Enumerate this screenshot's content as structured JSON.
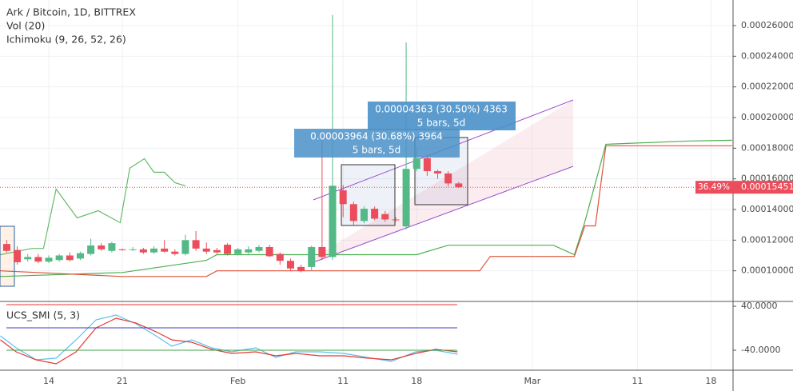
{
  "chart_data": [
    {
      "type": "candlestick",
      "title": "Ark / Bitcoin, 1D, BITTREX",
      "indicators": [
        "Vol (20)",
        "Ichimoku (9, 26, 52, 26)"
      ],
      "up_color": "#53b987",
      "down_color": "#eb4d5c",
      "xlim": [
        9.36,
        79.1
      ],
      "xticks": [
        14,
        21,
        {
          "value": 32,
          "label": "Feb"
        },
        {
          "value": 42,
          "label": "11"
        },
        {
          "value": 49,
          "label": "18"
        },
        {
          "value": 60,
          "label": "Mar"
        },
        {
          "value": 70,
          "label": "11"
        },
        {
          "value": 77,
          "label": "18"
        }
      ],
      "ylim": [
        8e-05,
        0.0002767
      ],
      "yticks": [
        {
          "value": 0.0001,
          "label": "0.00010000"
        },
        {
          "value": 0.00012,
          "label": "0.00012000"
        },
        {
          "value": 0.00014,
          "label": "0.00014000"
        },
        {
          "value": 0.00016,
          "label": "0.00016000"
        },
        {
          "value": 0.00018,
          "label": "0.00018000"
        },
        {
          "value": 0.0002,
          "label": "0.00020000"
        },
        {
          "value": 0.00022,
          "label": "0.00022000"
        },
        {
          "value": 0.00024,
          "label": "0.00024000"
        },
        {
          "value": 0.00026,
          "label": "0.00026000"
        }
      ],
      "grid": true,
      "x": [
        10,
        11,
        12,
        13,
        14,
        15,
        16,
        17,
        18,
        19,
        20,
        21,
        22,
        23,
        24,
        25,
        26,
        27,
        28,
        29,
        30,
        31,
        32,
        33,
        34,
        35,
        36,
        37,
        38,
        39,
        40,
        41,
        42,
        43,
        44,
        45,
        46,
        47,
        48,
        49,
        50,
        51,
        52,
        53
      ],
      "open": [
        0.0001175,
        0.0001136,
        0.0001075,
        0.000109,
        0.000106,
        0.000107,
        0.00011,
        0.000108,
        0.000111,
        0.0001165,
        0.000113,
        0.000114,
        0.0001135,
        0.000114,
        0.000112,
        0.0001145,
        0.0001125,
        0.000111,
        0.00012,
        0.0001145,
        0.0001135,
        0.000117,
        0.000111,
        0.000112,
        0.000113,
        0.0001155,
        0.000111,
        0.0001065,
        0.0001025,
        0.0001025,
        0.0001155,
        0.000109,
        0.0001525,
        0.0001435,
        0.0001325,
        0.0001405,
        0.000137,
        0.0001335,
        0.000129,
        0.0001665,
        0.0001735,
        0.000165,
        0.0001635,
        0.000157
      ],
      "high": [
        0.00012,
        0.000116,
        0.000111,
        0.000111,
        0.00011,
        0.000111,
        0.000112,
        0.0001125,
        0.000121,
        0.000118,
        0.000119,
        0.0001145,
        0.0001155,
        0.000115,
        0.000116,
        0.00012,
        0.000114,
        0.0001235,
        0.000126,
        0.0001185,
        0.000115,
        0.000118,
        0.000115,
        0.000116,
        0.000117,
        0.000117,
        0.000112,
        0.000108,
        0.000104,
        0.0001165,
        0.000186,
        0.000267,
        0.000156,
        0.000145,
        0.000142,
        0.000142,
        0.000139,
        0.000135,
        0.000249,
        0.00018,
        0.000176,
        0.000166,
        0.000165,
        0.000158
      ],
      "low": [
        0.000112,
        0.000104,
        0.000106,
        0.000105,
        0.000105,
        0.000106,
        0.000106,
        0.000107,
        0.00011,
        0.000113,
        0.000112,
        0.000113,
        0.000113,
        0.000111,
        0.000111,
        0.000112,
        0.00011,
        0.00011,
        0.000113,
        0.000111,
        0.000111,
        0.00011,
        0.00011,
        0.000111,
        0.000112,
        0.000109,
        0.000104,
        0.0001,
        9.9e-05,
        0.0001,
        0.000107,
        0.000107,
        0.000135,
        0.00013,
        0.000131,
        0.000133,
        0.000132,
        0.000132,
        0.000127,
        0.000165,
        0.000162,
        0.00016,
        0.000155,
        0.000154
      ],
      "close": [
        0.000113,
        0.0001056,
        0.000109,
        0.000106,
        0.0001085,
        0.00011,
        0.000107,
        0.0001115,
        0.0001165,
        0.000114,
        0.000118,
        0.0001135,
        0.000114,
        0.000112,
        0.0001145,
        0.0001125,
        0.000111,
        0.00012,
        0.0001145,
        0.0001125,
        0.000112,
        0.000111,
        0.000114,
        0.000114,
        0.0001155,
        0.0001095,
        0.0001065,
        0.0001015,
        0.0001,
        0.0001155,
        0.000109,
        0.0001555,
        0.0001435,
        0.0001325,
        0.0001405,
        0.000134,
        0.0001335,
        0.000133,
        0.0001665,
        0.0001735,
        0.000165,
        0.0001635,
        0.000157,
        0.00015451
      ],
      "lines": [
        {
          "color": "#4caf50",
          "x": [
            9.4,
            21,
            29,
            30,
            49,
            52,
            62,
            64,
            65,
            67,
            75,
            79
          ],
          "values": [
            9.63e-05,
            9.89e-05,
            0.0001068,
            0.0001105,
            0.0001105,
            0.0001167,
            0.0001167,
            0.0001105,
            0.0001319,
            0.0001826,
            0.0001847,
            0.0001852
          ]
        },
        {
          "color": "#e0523a",
          "x": [
            9.4,
            21,
            29,
            30,
            55,
            56,
            64,
            65,
            66,
            67,
            79
          ],
          "values": [
            0.0001,
            9.63e-05,
            9.63e-05,
            0.0001,
            0.0001,
            0.0001094,
            0.0001094,
            0.0001293,
            0.0001293,
            0.0001816,
            0.0001816
          ]
        },
        {
          "color": "#66bb6a",
          "x": [
            9.4,
            12.4,
            13.5,
            14.7,
            16.7,
            18.7,
            20.8,
            21.7,
            23.1,
            24,
            25,
            26,
            27
          ],
          "values": [
            0.0001105,
            0.0001146,
            0.0001146,
            0.0001533,
            0.0001345,
            0.0001392,
            0.0001314,
            0.0001669,
            0.0001732,
            0.0001643,
            0.0001643,
            0.0001575,
            0.0001554
          ]
        }
      ],
      "last_price": 0.00015451,
      "change_label": "36.49%",
      "annotations": [
        "0.00003964 (30.68%) 3964",
        "5 bars, 5d",
        "0.00004363 (30.50%) 4363",
        "5 bars, 5d"
      ]
    },
    {
      "type": "line",
      "title": "UCS_SMI (5, 3)",
      "ylim": [
        -76.4,
        48.7
      ],
      "yticks": [
        {
          "value": 40,
          "label": "40.0000"
        },
        {
          "value": -40,
          "label": "-40.0000"
        }
      ],
      "x": [
        9.4,
        10.9,
        12.8,
        14.7,
        16.6,
        18.5,
        20.4,
        22.3,
        24.2,
        25.7,
        27.6,
        29.5,
        31.4,
        33.7,
        35.6,
        37.5,
        39.8,
        42.1,
        44.3,
        46.6,
        48.9,
        50.8,
        52.9
      ],
      "series": [
        {
          "color": "#5bc0eb",
          "values": [
            -13.8,
            -35.6,
            -57.5,
            -54.5,
            -21.1,
            15.3,
            24,
            8,
            -13.8,
            -32.7,
            -21.1,
            -35.6,
            -42.9,
            -35.6,
            -53.1,
            -42.9,
            -42.9,
            -45.8,
            -53.1,
            -60.4,
            -42.9,
            -40,
            -47.3
          ]
        },
        {
          "color": "#e53935",
          "values": [
            -21.1,
            -42.9,
            -57.5,
            -64.7,
            -42.9,
            0.7,
            18.2,
            9.5,
            -6.5,
            -21.1,
            -25.5,
            -38.5,
            -45.8,
            -42.9,
            -50.2,
            -45.8,
            -50.2,
            -50.2,
            -54.5,
            -57.5,
            -45.8,
            -38.5,
            -42.9
          ]
        }
      ]
    }
  ]
}
